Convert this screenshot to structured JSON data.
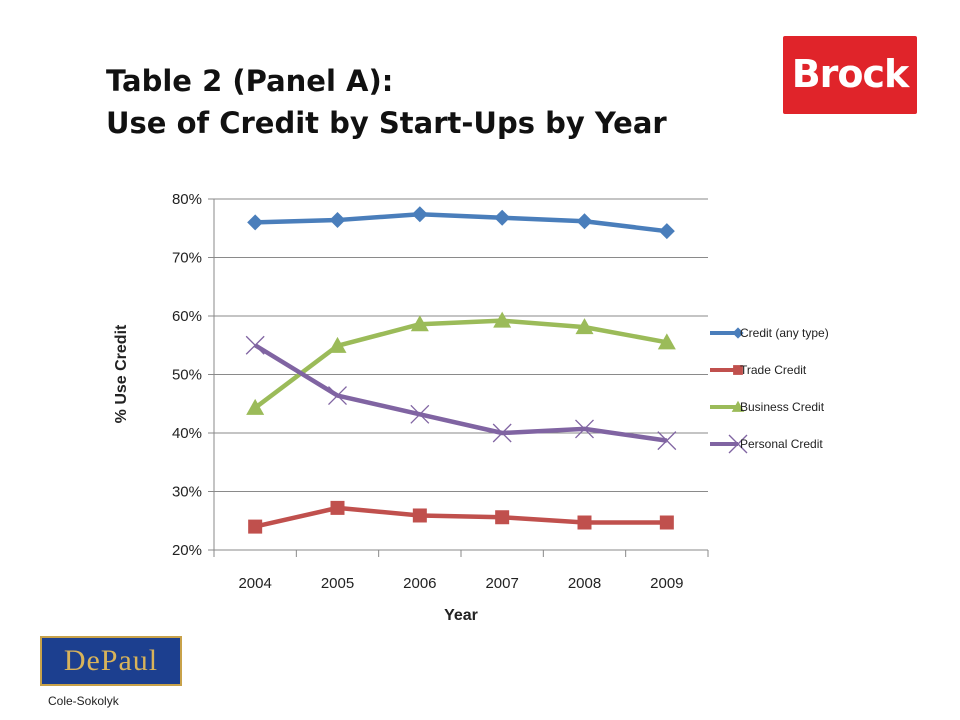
{
  "slide": {
    "title_line1": "Table 2 (Panel A):",
    "title_line2": "Use of Credit by Start-Ups by Year",
    "logo_right": "Brock",
    "logo_left": "DePaul",
    "author": "Cole-Sokolyk"
  },
  "colors": {
    "credit_any": "#4a7ebb",
    "trade": "#c0504d",
    "business": "#9bbb59",
    "personal": "#8064a2",
    "logo_red": "#e0242a",
    "logo_blue": "#1c3f8f"
  },
  "chart_data": {
    "type": "line",
    "title": "Use of Credit by Start-Ups by Year",
    "xlabel": "Year",
    "ylabel": "% Use Credit",
    "categories": [
      "2004",
      "2005",
      "2006",
      "2007",
      "2008",
      "2009"
    ],
    "ylim": [
      20,
      80
    ],
    "yticks": [
      20,
      30,
      40,
      50,
      60,
      70,
      80
    ],
    "ytick_labels": [
      "20%",
      "30%",
      "40%",
      "50%",
      "60%",
      "70%",
      "80%"
    ],
    "grid": "horizontal",
    "legend": "right",
    "series": [
      {
        "name": "Credit (any type)",
        "marker": "diamond",
        "values": [
          76.0,
          76.4,
          77.4,
          76.8,
          76.2,
          74.5
        ]
      },
      {
        "name": "Trade Credit",
        "marker": "square",
        "values": [
          24.0,
          27.2,
          25.9,
          25.6,
          24.7,
          24.7
        ]
      },
      {
        "name": "Business Credit",
        "marker": "triangle",
        "values": [
          44.3,
          54.9,
          58.6,
          59.2,
          58.1,
          55.5
        ]
      },
      {
        "name": "Personal Credit",
        "marker": "x",
        "values": [
          55.0,
          46.4,
          43.2,
          40.0,
          40.7,
          38.7
        ]
      }
    ]
  }
}
